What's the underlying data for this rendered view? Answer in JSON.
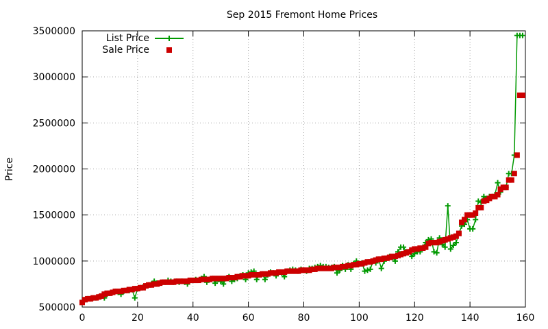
{
  "chart_data": {
    "type": "line",
    "title": "Sep 2015 Fremont Home Prices",
    "xlabel": "",
    "ylabel": "Price",
    "xlim": [
      0,
      160
    ],
    "ylim": [
      500000,
      3500000
    ],
    "xticks": [
      "0",
      "20",
      "40",
      "60",
      "80",
      "100",
      "120",
      "140",
      "160"
    ],
    "yticks": [
      "500000",
      "1000000",
      "1500000",
      "2000000",
      "2500000",
      "3000000",
      "3500000"
    ],
    "grid": true,
    "legend_position": "top-left",
    "series": [
      {
        "name": "List Price",
        "style": "line+cross",
        "color": "#009900",
        "x": [
          0,
          1,
          2,
          3,
          4,
          5,
          6,
          7,
          8,
          9,
          10,
          11,
          12,
          13,
          14,
          15,
          16,
          17,
          18,
          19,
          20,
          21,
          22,
          23,
          24,
          25,
          26,
          27,
          28,
          29,
          30,
          31,
          32,
          33,
          34,
          35,
          36,
          37,
          38,
          39,
          40,
          41,
          42,
          43,
          44,
          45,
          46,
          47,
          48,
          49,
          50,
          51,
          52,
          53,
          54,
          55,
          56,
          57,
          58,
          59,
          60,
          61,
          62,
          63,
          64,
          65,
          66,
          67,
          68,
          69,
          70,
          71,
          72,
          73,
          74,
          75,
          76,
          77,
          78,
          79,
          80,
          81,
          82,
          83,
          84,
          85,
          86,
          87,
          88,
          89,
          90,
          91,
          92,
          93,
          94,
          95,
          96,
          97,
          98,
          99,
          100,
          101,
          102,
          103,
          104,
          105,
          106,
          107,
          108,
          109,
          110,
          111,
          112,
          113,
          114,
          115,
          116,
          117,
          118,
          119,
          120,
          121,
          122,
          123,
          124,
          125,
          126,
          127,
          128,
          129,
          130,
          131,
          132,
          133,
          134,
          135,
          136,
          137,
          138,
          139,
          140,
          141,
          142,
          143,
          144,
          145,
          146,
          147,
          148,
          149,
          150,
          151,
          152,
          153,
          154,
          155,
          156,
          157,
          158,
          159
        ],
        "y": [
          550000,
          580000,
          590000,
          590000,
          600000,
          600000,
          610000,
          620000,
          600000,
          640000,
          650000,
          660000,
          670000,
          660000,
          640000,
          670000,
          680000,
          680000,
          690000,
          600000,
          700000,
          710000,
          720000,
          730000,
          740000,
          750000,
          780000,
          760000,
          760000,
          770000,
          770000,
          790000,
          780000,
          770000,
          780000,
          770000,
          780000,
          770000,
          750000,
          790000,
          790000,
          800000,
          790000,
          810000,
          830000,
          770000,
          800000,
          810000,
          760000,
          800000,
          780000,
          750000,
          810000,
          830000,
          780000,
          800000,
          810000,
          840000,
          850000,
          800000,
          870000,
          880000,
          890000,
          800000,
          850000,
          860000,
          800000,
          850000,
          880000,
          870000,
          840000,
          880000,
          870000,
          830000,
          890000,
          900000,
          910000,
          900000,
          890000,
          910000,
          900000,
          890000,
          920000,
          920000,
          930000,
          940000,
          950000,
          940000,
          940000,
          930000,
          930000,
          940000,
          870000,
          900000,
          950000,
          910000,
          960000,
          910000,
          970000,
          1000000,
          970000,
          980000,
          890000,
          900000,
          910000,
          1000000,
          980000,
          1020000,
          920000,
          1000000,
          1030000,
          1050000,
          1040000,
          1000000,
          1100000,
          1150000,
          1150000,
          1100000,
          1100000,
          1050000,
          1080000,
          1100000,
          1100000,
          1150000,
          1200000,
          1230000,
          1240000,
          1100000,
          1090000,
          1250000,
          1180000,
          1150000,
          1600000,
          1130000,
          1170000,
          1200000,
          1300000,
          1380000,
          1400000,
          1450000,
          1350000,
          1350000,
          1450000,
          1650000,
          1640000,
          1700000,
          1680000,
          1700000,
          1700000,
          1720000,
          1850000,
          1750000,
          1800000,
          1800000,
          1950000,
          1950000,
          2150000,
          3450000,
          3450000,
          3450000
        ]
      },
      {
        "name": "Sale Price",
        "style": "points-square",
        "color": "#cc0000",
        "x": [
          0,
          1,
          2,
          3,
          4,
          5,
          6,
          7,
          8,
          9,
          10,
          11,
          12,
          13,
          14,
          15,
          16,
          17,
          18,
          19,
          20,
          21,
          22,
          23,
          24,
          25,
          26,
          27,
          28,
          29,
          30,
          31,
          32,
          33,
          34,
          35,
          36,
          37,
          38,
          39,
          40,
          41,
          42,
          43,
          44,
          45,
          46,
          47,
          48,
          49,
          50,
          51,
          52,
          53,
          54,
          55,
          56,
          57,
          58,
          59,
          60,
          61,
          62,
          63,
          64,
          65,
          66,
          67,
          68,
          69,
          70,
          71,
          72,
          73,
          74,
          75,
          76,
          77,
          78,
          79,
          80,
          81,
          82,
          83,
          84,
          85,
          86,
          87,
          88,
          89,
          90,
          91,
          92,
          93,
          94,
          95,
          96,
          97,
          98,
          99,
          100,
          101,
          102,
          103,
          104,
          105,
          106,
          107,
          108,
          109,
          110,
          111,
          112,
          113,
          114,
          115,
          116,
          117,
          118,
          119,
          120,
          121,
          122,
          123,
          124,
          125,
          126,
          127,
          128,
          129,
          130,
          131,
          132,
          133,
          134,
          135,
          136,
          137,
          138,
          139,
          140,
          141,
          142,
          143,
          144,
          145,
          146,
          147,
          148,
          149,
          150,
          151,
          152,
          153,
          154,
          155,
          156,
          157,
          158,
          159
        ],
        "y": [
          550000,
          580000,
          590000,
          590000,
          600000,
          600000,
          610000,
          620000,
          640000,
          650000,
          650000,
          660000,
          670000,
          670000,
          670000,
          680000,
          680000,
          690000,
          690000,
          700000,
          700000,
          710000,
          710000,
          730000,
          740000,
          740000,
          750000,
          750000,
          760000,
          770000,
          770000,
          770000,
          770000,
          770000,
          780000,
          780000,
          780000,
          780000,
          780000,
          790000,
          790000,
          790000,
          790000,
          800000,
          800000,
          800000,
          800000,
          810000,
          810000,
          810000,
          810000,
          810000,
          810000,
          820000,
          820000,
          820000,
          830000,
          830000,
          840000,
          840000,
          840000,
          850000,
          850000,
          850000,
          850000,
          860000,
          860000,
          860000,
          870000,
          870000,
          870000,
          880000,
          880000,
          880000,
          890000,
          890000,
          890000,
          890000,
          890000,
          900000,
          900000,
          900000,
          900000,
          910000,
          910000,
          920000,
          920000,
          920000,
          920000,
          920000,
          920000,
          930000,
          930000,
          930000,
          940000,
          940000,
          950000,
          950000,
          960000,
          960000,
          970000,
          970000,
          980000,
          990000,
          990000,
          1000000,
          1010000,
          1020000,
          1020000,
          1030000,
          1030000,
          1040000,
          1050000,
          1050000,
          1060000,
          1070000,
          1080000,
          1090000,
          1100000,
          1120000,
          1130000,
          1130000,
          1140000,
          1140000,
          1150000,
          1190000,
          1200000,
          1200000,
          1200000,
          1210000,
          1220000,
          1230000,
          1240000,
          1250000,
          1260000,
          1270000,
          1300000,
          1420000,
          1450000,
          1500000,
          1500000,
          1500000,
          1520000,
          1580000,
          1580000,
          1650000,
          1660000,
          1680000,
          1700000,
          1700000,
          1720000,
          1780000,
          1800000,
          1800000,
          1880000,
          1880000,
          1950000,
          2150000,
          2800000,
          2800000
        ]
      }
    ]
  }
}
